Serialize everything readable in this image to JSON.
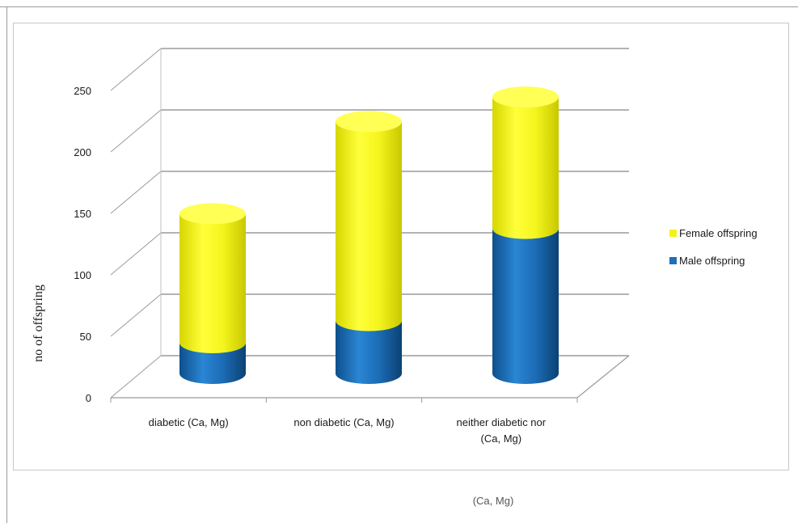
{
  "chart_data": {
    "type": "bar",
    "stacked": true,
    "style": "3d-cylinder",
    "title": "",
    "xlabel": "",
    "ylabel": "no of offspring",
    "ylim": [
      0,
      250
    ],
    "yticks": [
      0,
      50,
      100,
      150,
      200,
      250
    ],
    "grid": true,
    "legend_position": "right",
    "categories": [
      [
        "diabetic (Ca, Mg)"
      ],
      [
        "non diabetic (Ca, Mg)"
      ],
      [
        "neither diabetic nor",
        "(Ca, Mg)"
      ]
    ],
    "series": [
      {
        "name": "Male offspring",
        "color": "#1f6fb8",
        "values": [
          25,
          43,
          118
        ]
      },
      {
        "name": "Female offspring",
        "color": "#f2f21a",
        "values": [
          105,
          162,
          107
        ]
      }
    ],
    "legend_order": [
      "Female offspring",
      "Male offspring"
    ],
    "stray_text": "(Ca, Mg)"
  }
}
